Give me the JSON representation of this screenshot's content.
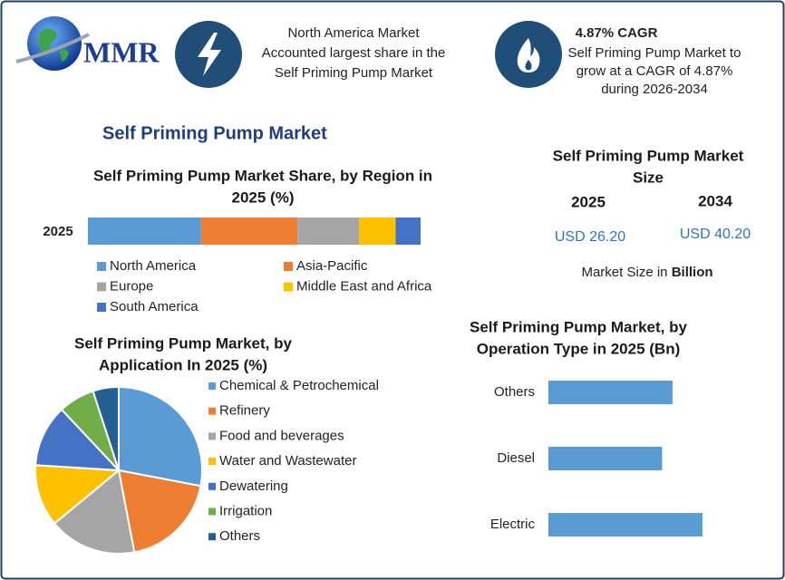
{
  "header": {
    "logo": "MMR",
    "highlight_1": [
      "North America Market",
      "Accounted largest share in the",
      "Self Priming Pump Market"
    ],
    "highlight_2_title": "4.87% CAGR",
    "highlight_2": [
      "Self Priming Pump Market to",
      "grow at a CAGR of 4.87%",
      "during 2026-2034"
    ]
  },
  "main_title": "Self Priming Pump Market",
  "market_size": {
    "title": [
      "Self Priming Pump Market",
      "Size"
    ],
    "years": [
      "2025",
      "2034"
    ],
    "values": [
      "USD 26.20",
      "USD 40.20"
    ],
    "note": "Market Size in",
    "note_unit": "Billion"
  },
  "chart_data": [
    {
      "type": "stacked-bar",
      "title": [
        "Self Priming Pump Market Share, by Region in",
        "2025 (%)"
      ],
      "categories": [
        "2025"
      ],
      "xlim": [
        0,
        100
      ],
      "series": [
        {
          "name": "North America",
          "color": "#5b9bd5",
          "values": [
            34
          ]
        },
        {
          "name": "Asia-Pacific",
          "color": "#ed7d31",
          "values": [
            29
          ]
        },
        {
          "name": "Europe",
          "color": "#a5a5a5",
          "values": [
            18.5
          ]
        },
        {
          "name": "Middle East and Africa",
          "color": "#ffc000",
          "values": [
            11
          ]
        },
        {
          "name": "South America",
          "color": "#4472c4",
          "values": [
            7.5
          ]
        }
      ]
    },
    {
      "type": "pie",
      "title": [
        "Self Priming Pump Market, by",
        "Application In 2025 (%)"
      ],
      "categories": [
        "Chemical & Petrochemical",
        "Refinery",
        "Food and beverages",
        "Water and Wastewater",
        "Dewatering",
        "Irrigation",
        "Others"
      ],
      "values": [
        28,
        19,
        17,
        12,
        12,
        7,
        5
      ],
      "colors": [
        "#5b9bd5",
        "#ed7d31",
        "#a5a5a5",
        "#ffc000",
        "#4472c4",
        "#70ad47",
        "#255e91"
      ]
    },
    {
      "type": "hbar",
      "title": [
        "Self Priming Pump Market, by",
        "Operation Type in 2025 (Bn)"
      ],
      "categories": [
        "Others",
        "Diesel",
        "Electric"
      ],
      "values": [
        8.3,
        7.6,
        10.3
      ],
      "color": "#5b9bd5",
      "xlim": [
        0,
        11
      ]
    }
  ]
}
